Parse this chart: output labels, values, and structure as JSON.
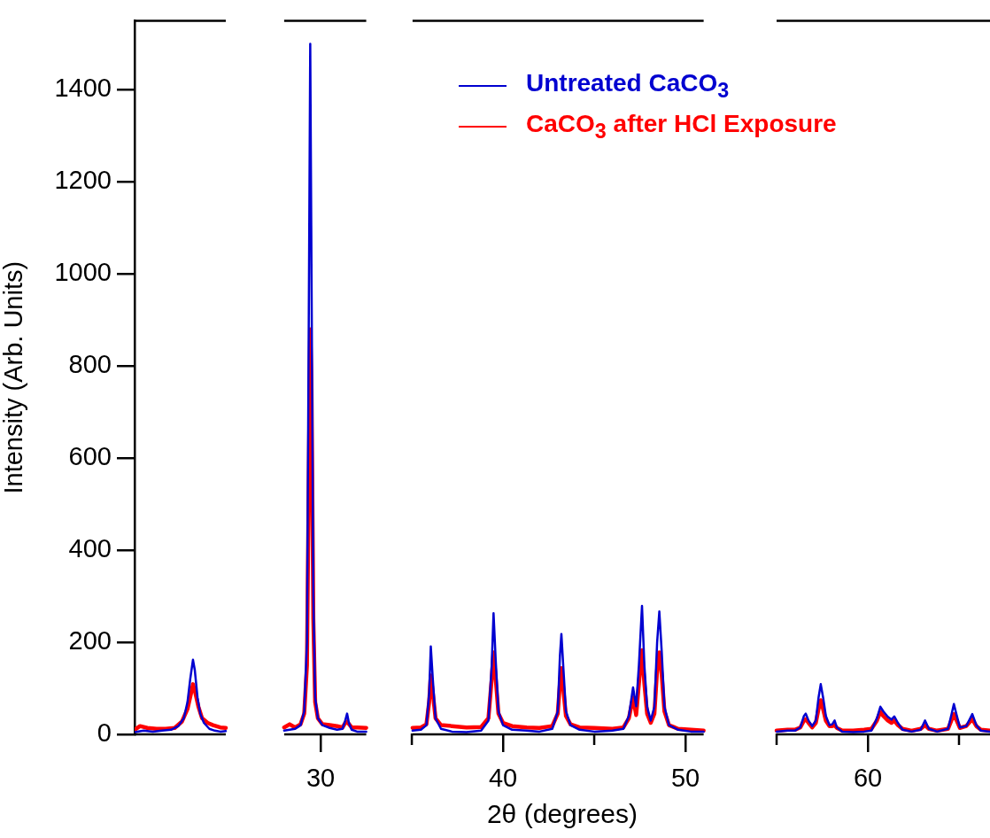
{
  "chart_data": {
    "type": "line",
    "xlabel": "2θ (degrees)",
    "ylabel": "Intensity (Arb. Units)",
    "legend": "top right",
    "xlim": [
      19.8,
      66.7
    ],
    "ylim": [
      0,
      1550
    ],
    "xticks": [
      30,
      {
        "value": 35,
        "label": null
      },
      40,
      {
        "value": 45,
        "label": null
      },
      50,
      {
        "value": 55,
        "label": null
      },
      60,
      {
        "value": 65,
        "label": null
      }
    ],
    "yticks": [
      0,
      200,
      400,
      600,
      800,
      1000,
      1200,
      1400
    ],
    "series": [
      {
        "name": "Untreated CaCO$_{3}$",
        "color": "#0000d0",
        "x": [
          19.8,
          20.3,
          20.8,
          21.3,
          21.8,
          22.2,
          22.5,
          22.7,
          22.85,
          23.0,
          23.1,
          23.25,
          23.4,
          23.6,
          23.9,
          24.2,
          24.5,
          24.8,
          26.4,
          28.0,
          28.3,
          28.6,
          28.9,
          29.1,
          29.25,
          29.35,
          29.43,
          29.5,
          29.6,
          29.7,
          29.85,
          30.1,
          30.5,
          30.9,
          31.2,
          31.35,
          31.45,
          31.55,
          31.7,
          32.0,
          32.5,
          33.75,
          35.04,
          35.5,
          35.8,
          35.95,
          36.04,
          36.15,
          36.3,
          36.6,
          37.2,
          38.0,
          38.8,
          39.2,
          39.38,
          39.48,
          39.6,
          39.75,
          40.0,
          40.5,
          41.3,
          42.0,
          42.7,
          43.0,
          43.12,
          43.2,
          43.3,
          43.45,
          43.7,
          44.2,
          45.0,
          46.0,
          46.6,
          46.9,
          47.13,
          47.3,
          47.45,
          47.62,
          47.75,
          47.9,
          48.1,
          48.3,
          48.45,
          48.57,
          48.7,
          48.85,
          49.1,
          49.6,
          50.3,
          51.0,
          53.0,
          55.0,
          55.6,
          56.0,
          56.3,
          56.5,
          56.6,
          56.75,
          56.95,
          57.15,
          57.3,
          57.42,
          57.55,
          57.7,
          57.9,
          58.05,
          58.18,
          58.3,
          58.6,
          59.2,
          59.8,
          60.2,
          60.5,
          60.69,
          60.85,
          61.1,
          61.3,
          61.45,
          61.65,
          61.9,
          62.4,
          62.9,
          63.14,
          63.35,
          63.8,
          64.4,
          64.6,
          64.72,
          64.85,
          65.05,
          65.4,
          65.73,
          65.95,
          66.2,
          66.7
        ],
        "values": [
          5,
          8,
          6,
          8,
          10,
          18,
          35,
          70,
          120,
          162,
          140,
          80,
          45,
          25,
          12,
          8,
          6,
          7,
          null,
          8,
          10,
          12,
          20,
          50,
          200,
          900,
          1500,
          1000,
          300,
          80,
          35,
          20,
          14,
          10,
          12,
          30,
          45,
          25,
          10,
          6,
          6,
          null,
          8,
          10,
          20,
          90,
          191,
          120,
          35,
          12,
          6,
          5,
          8,
          30,
          150,
          263,
          160,
          50,
          20,
          10,
          8,
          6,
          12,
          50,
          170,
          218,
          150,
          50,
          20,
          10,
          6,
          8,
          12,
          40,
          102,
          61,
          150,
          279,
          150,
          60,
          30,
          60,
          200,
          267,
          180,
          60,
          20,
          10,
          6,
          6,
          null,
          6,
          8,
          8,
          15,
          40,
          45,
          30,
          18,
          30,
          80,
          109,
          80,
          40,
          20,
          22,
          30,
          15,
          6,
          5,
          6,
          8,
          35,
          60,
          50,
          38,
          32,
          39,
          25,
          10,
          6,
          10,
          30,
          12,
          6,
          12,
          45,
          66,
          45,
          15,
          18,
          44,
          20,
          8,
          6
        ]
      },
      {
        "name": "CaCO$_{3}$ after HCl Exposure",
        "color": "#ff0000",
        "x": [
          19.8,
          20.1,
          20.5,
          21.0,
          21.5,
          22.0,
          22.4,
          22.7,
          22.9,
          23.0,
          23.1,
          23.3,
          23.5,
          23.8,
          24.1,
          24.5,
          24.8,
          26.4,
          28.0,
          28.3,
          28.6,
          28.9,
          29.1,
          29.25,
          29.35,
          29.43,
          29.5,
          29.6,
          29.7,
          29.85,
          30.1,
          30.5,
          30.9,
          31.2,
          31.4,
          31.5,
          31.7,
          32.0,
          32.5,
          33.75,
          35.04,
          35.5,
          35.8,
          35.95,
          36.04,
          36.15,
          36.3,
          36.6,
          37.2,
          38.0,
          38.8,
          39.2,
          39.38,
          39.48,
          39.6,
          39.75,
          40.0,
          40.5,
          41.3,
          42.0,
          42.7,
          43.0,
          43.12,
          43.2,
          43.3,
          43.45,
          43.7,
          44.2,
          45.0,
          46.0,
          46.6,
          46.9,
          47.13,
          47.3,
          47.45,
          47.62,
          47.75,
          47.9,
          48.1,
          48.3,
          48.45,
          48.57,
          48.7,
          48.85,
          49.1,
          49.6,
          50.3,
          51.0,
          53.0,
          55.0,
          55.6,
          56.0,
          56.3,
          56.5,
          56.6,
          56.75,
          56.95,
          57.15,
          57.3,
          57.42,
          57.55,
          57.7,
          57.9,
          58.05,
          58.18,
          58.3,
          58.6,
          59.2,
          59.8,
          60.2,
          60.5,
          60.69,
          60.85,
          61.1,
          61.3,
          61.45,
          61.65,
          61.9,
          62.4,
          62.9,
          63.14,
          63.35,
          63.8,
          64.4,
          64.6,
          64.72,
          64.85,
          65.05,
          65.4,
          65.73,
          65.95,
          66.2,
          66.7
        ],
        "values": [
          10,
          18,
          14,
          12,
          12,
          14,
          28,
          55,
          90,
          109,
          95,
          60,
          35,
          25,
          20,
          15,
          14,
          null,
          15,
          22,
          15,
          22,
          45,
          150,
          550,
          880,
          750,
          250,
          70,
          35,
          22,
          20,
          18,
          15,
          28,
          25,
          15,
          15,
          14,
          null,
          14,
          15,
          22,
          70,
          128,
          90,
          35,
          20,
          18,
          15,
          16,
          35,
          120,
          178,
          120,
          45,
          25,
          18,
          15,
          14,
          18,
          45,
          110,
          144,
          100,
          40,
          22,
          15,
          14,
          12,
          15,
          35,
          80,
          42,
          110,
          183,
          110,
          45,
          25,
          45,
          140,
          178,
          130,
          50,
          20,
          12,
          10,
          8,
          null,
          8,
          10,
          10,
          15,
          30,
          33,
          25,
          15,
          25,
          55,
          74,
          55,
          30,
          18,
          18,
          20,
          14,
          8,
          8,
          10,
          12,
          30,
          49,
          40,
          30,
          25,
          30,
          20,
          12,
          8,
          12,
          20,
          12,
          8,
          12,
          32,
          44,
          32,
          14,
          18,
          33,
          18,
          10,
          8
        ]
      }
    ]
  }
}
